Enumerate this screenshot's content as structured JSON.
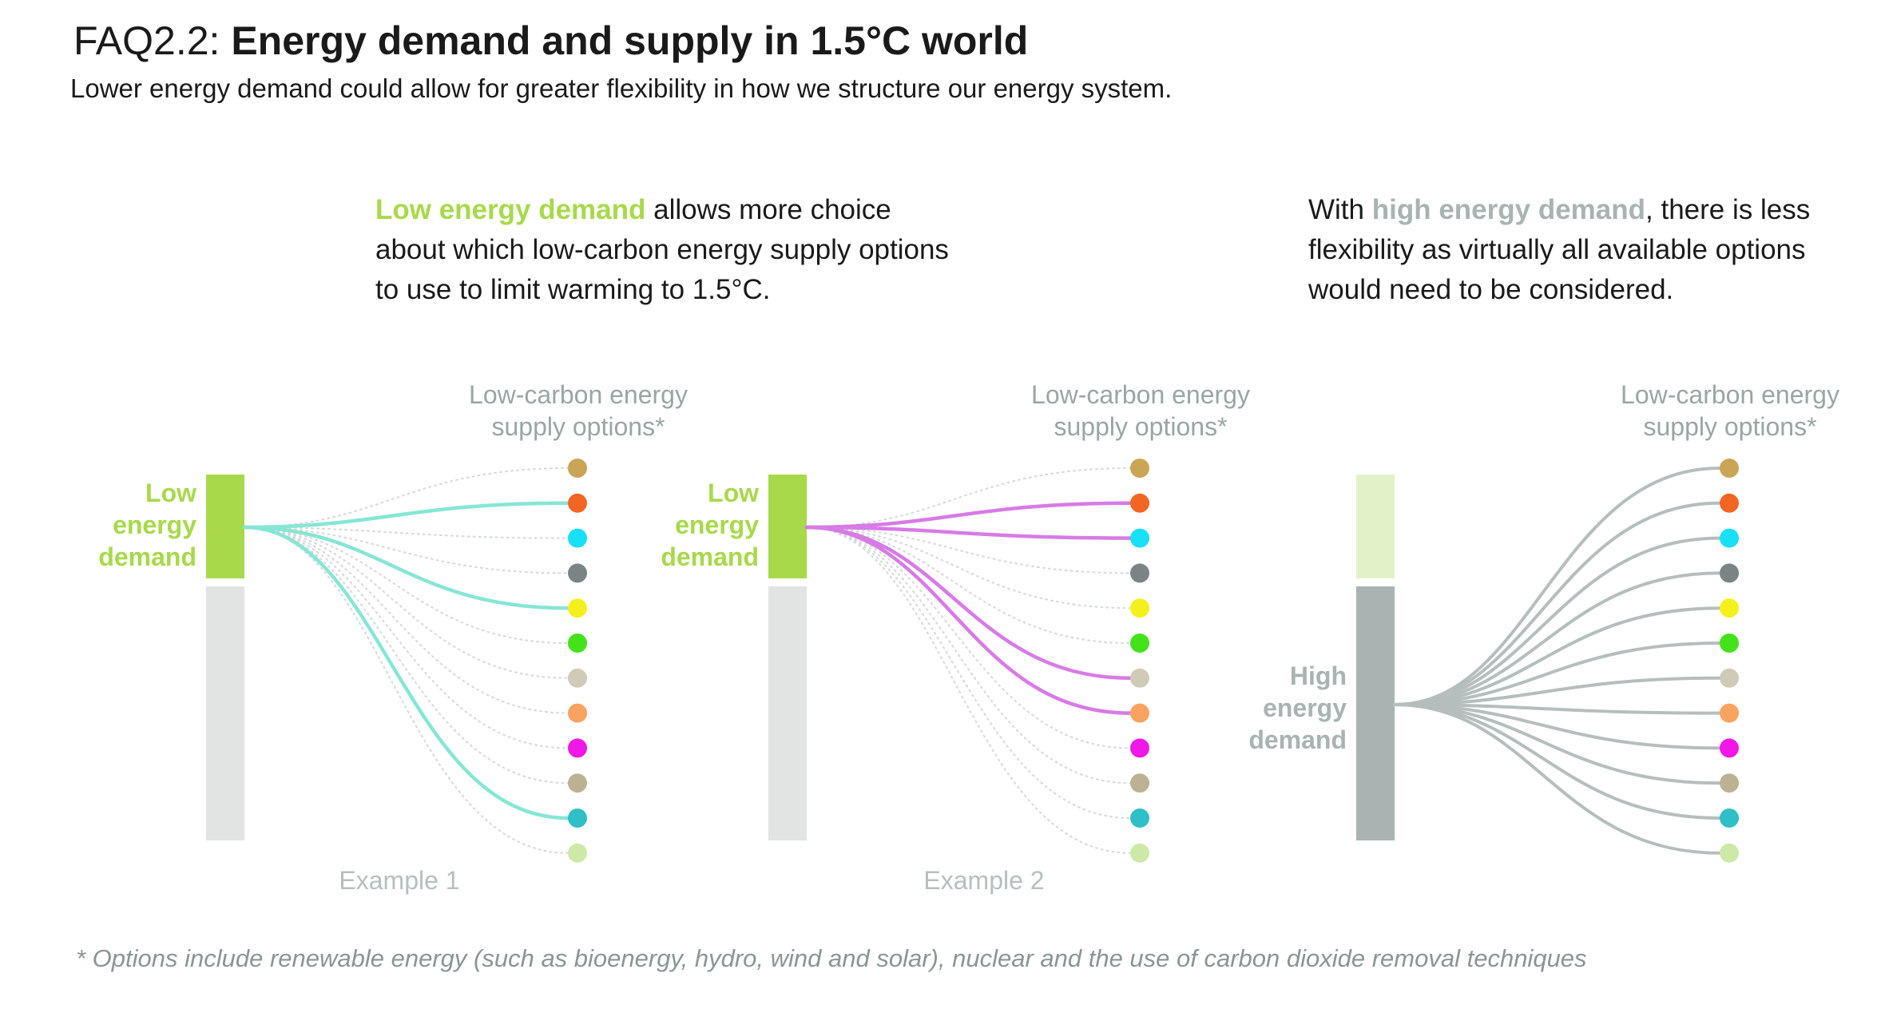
{
  "header": {
    "prefix": "FAQ2.2: ",
    "title": "Energy demand and supply in 1.5°C world",
    "subtitle": "Lower energy demand could allow for greater flexibility in how we structure our energy system."
  },
  "intro_low": {
    "highlight": "Low energy demand",
    "rest": " allows more choice about which low-carbon energy supply options to use to limit warming to 1.5°C."
  },
  "intro_high": {
    "lead": "With ",
    "highlight": "high energy demand",
    "rest": ", there is less flexibility as virtually all available options would need to be considered."
  },
  "colors": {
    "low_demand": "#a8d94a",
    "low_demand_faded": "#e3f1c8",
    "high_demand": "#a9b3b1",
    "bar_background": "#e1e4e3",
    "example1_line": "#86e6d4",
    "example2_line": "#d77be6",
    "high_line": "#b6bebd",
    "dotted_line": "#d4d9d8",
    "label_grey": "#9aa5a4"
  },
  "option_colors": [
    "#c9a555",
    "#f26522",
    "#18e0f7",
    "#7b8384",
    "#f5f01b",
    "#44e21a",
    "#cfcbb7",
    "#f9a360",
    "#f018e6",
    "#bcb293",
    "#2fbfc6",
    "#cde9a8"
  ],
  "panels": [
    {
      "id": "example1",
      "supply_label": [
        "Low-carbon energy",
        "supply options*"
      ],
      "demand_label": [
        "Low",
        "energy",
        "demand"
      ],
      "demand_level": "low",
      "caption": "Example 1",
      "selected_options": [
        1,
        4,
        10
      ]
    },
    {
      "id": "example2",
      "supply_label": [
        "Low-carbon energy",
        "supply options*"
      ],
      "demand_label": [
        "Low",
        "energy",
        "demand"
      ],
      "demand_level": "low",
      "caption": "Example 2",
      "selected_options": [
        1,
        2,
        6,
        7
      ]
    },
    {
      "id": "high",
      "supply_label": [
        "Low-carbon energy",
        "supply options*"
      ],
      "demand_label": [
        "High",
        "energy",
        "demand"
      ],
      "demand_level": "high",
      "caption": "",
      "selected_options": [
        0,
        1,
        2,
        3,
        4,
        5,
        6,
        7,
        8,
        9,
        10,
        11
      ]
    }
  ],
  "footnote": "* Options include renewable energy (such as bioenergy, hydro, wind and solar), nuclear and the use of carbon dioxide removal techniques"
}
